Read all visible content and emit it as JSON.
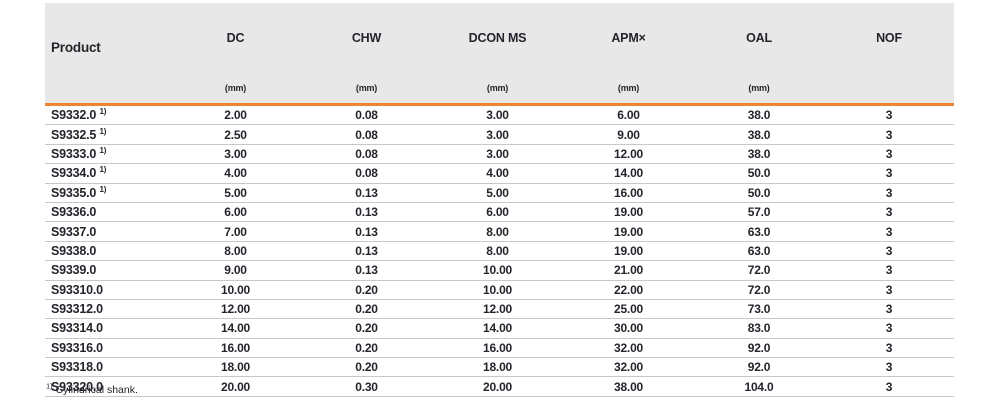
{
  "colors": {
    "accent_orange": "#ef8433",
    "header_bg": "#e9e8e8",
    "row_line": "#c8c8c8",
    "text": "#24242c"
  },
  "table": {
    "columns": [
      {
        "label": "Product",
        "unit": ""
      },
      {
        "label": "DC",
        "unit": "(mm)"
      },
      {
        "label": "CHW",
        "unit": "(mm)"
      },
      {
        "label": "DCON MS",
        "unit": "(mm)"
      },
      {
        "label": "APM×",
        "unit": "(mm)"
      },
      {
        "label": "OAL",
        "unit": "(mm)"
      },
      {
        "label": "NOF",
        "unit": ""
      }
    ],
    "rows": [
      {
        "product": "S9332.0",
        "footnote_ref": "1)",
        "values": [
          "2.00",
          "0.08",
          "3.00",
          "6.00",
          "38.0",
          "3"
        ]
      },
      {
        "product": "S9332.5",
        "footnote_ref": "1)",
        "values": [
          "2.50",
          "0.08",
          "3.00",
          "9.00",
          "38.0",
          "3"
        ]
      },
      {
        "product": "S9333.0",
        "footnote_ref": "1)",
        "values": [
          "3.00",
          "0.08",
          "3.00",
          "12.00",
          "38.0",
          "3"
        ]
      },
      {
        "product": "S9334.0",
        "footnote_ref": "1)",
        "values": [
          "4.00",
          "0.08",
          "4.00",
          "14.00",
          "50.0",
          "3"
        ]
      },
      {
        "product": "S9335.0",
        "footnote_ref": "1)",
        "values": [
          "5.00",
          "0.13",
          "5.00",
          "16.00",
          "50.0",
          "3"
        ]
      },
      {
        "product": "S9336.0",
        "footnote_ref": "",
        "values": [
          "6.00",
          "0.13",
          "6.00",
          "19.00",
          "57.0",
          "3"
        ]
      },
      {
        "product": "S9337.0",
        "footnote_ref": "",
        "values": [
          "7.00",
          "0.13",
          "8.00",
          "19.00",
          "63.0",
          "3"
        ]
      },
      {
        "product": "S9338.0",
        "footnote_ref": "",
        "values": [
          "8.00",
          "0.13",
          "8.00",
          "19.00",
          "63.0",
          "3"
        ]
      },
      {
        "product": "S9339.0",
        "footnote_ref": "",
        "values": [
          "9.00",
          "0.13",
          "10.00",
          "21.00",
          "72.0",
          "3"
        ]
      },
      {
        "product": "S93310.0",
        "footnote_ref": "",
        "values": [
          "10.00",
          "0.20",
          "10.00",
          "22.00",
          "72.0",
          "3"
        ]
      },
      {
        "product": "S93312.0",
        "footnote_ref": "",
        "values": [
          "12.00",
          "0.20",
          "12.00",
          "25.00",
          "73.0",
          "3"
        ]
      },
      {
        "product": "S93314.0",
        "footnote_ref": "",
        "values": [
          "14.00",
          "0.20",
          "14.00",
          "30.00",
          "83.0",
          "3"
        ]
      },
      {
        "product": "S93316.0",
        "footnote_ref": "",
        "values": [
          "16.00",
          "0.20",
          "16.00",
          "32.00",
          "92.0",
          "3"
        ]
      },
      {
        "product": "S93318.0",
        "footnote_ref": "",
        "values": [
          "18.00",
          "0.20",
          "18.00",
          "32.00",
          "92.0",
          "3"
        ]
      },
      {
        "product": "S93320.0",
        "footnote_ref": "",
        "values": [
          "20.00",
          "0.30",
          "20.00",
          "38.00",
          "104.0",
          "3"
        ]
      }
    ],
    "footnote": {
      "ref": "1)",
      "text": "Cylindrical shank."
    }
  }
}
